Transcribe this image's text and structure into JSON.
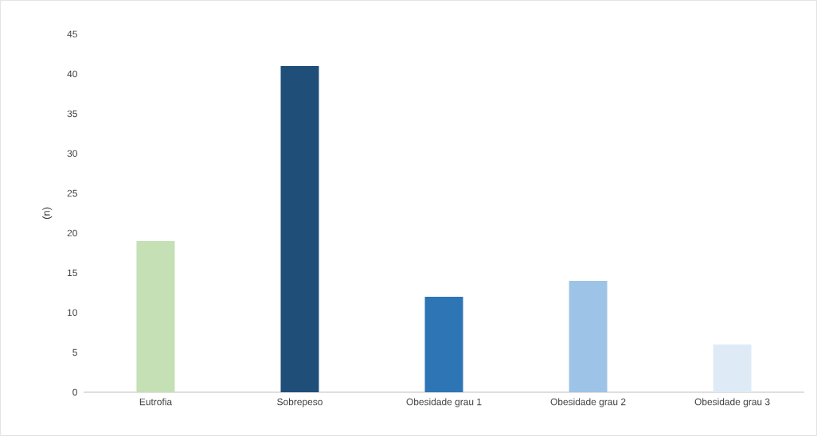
{
  "chart_data": {
    "type": "bar",
    "ylabel": "(n)",
    "categories": [
      "Eutrofia",
      "Sobrepeso",
      "Obesidade grau 1",
      "Obesidade grau 2",
      "Obesidade grau 3"
    ],
    "values": [
      19,
      41,
      12,
      14,
      6
    ],
    "colors": [
      "#c5e0b4",
      "#1f4e79",
      "#2e75b6",
      "#9dc3e6",
      "#deebf7"
    ],
    "ylim": [
      0,
      45
    ],
    "yticks": [
      0,
      5,
      10,
      15,
      20,
      25,
      30,
      35,
      40,
      45
    ],
    "grid": false
  }
}
